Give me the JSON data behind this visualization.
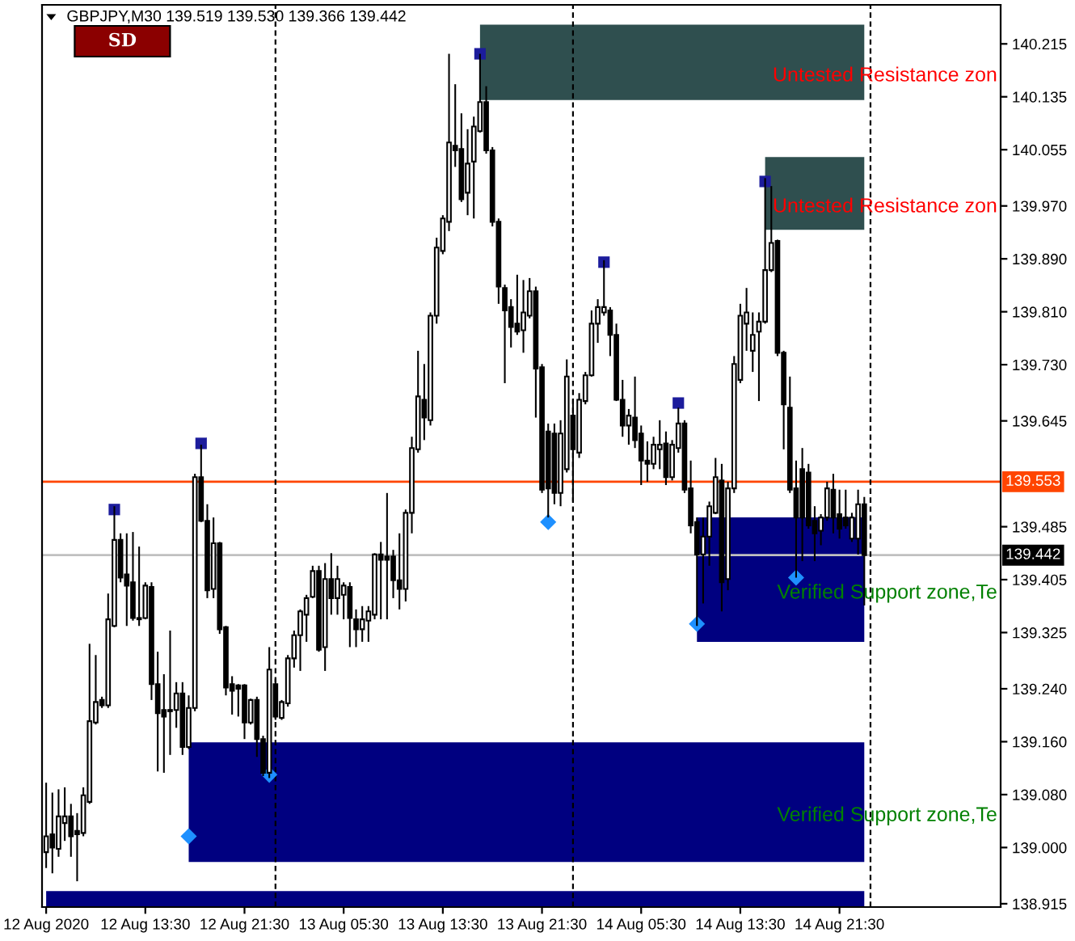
{
  "chart_data": {
    "type": "candlestick",
    "title": "GBPJPY,M30 139.519 139.530 139.366 139.442",
    "x": [
      "2020-08-12T05:30",
      "2020-08-12T06:00",
      "2020-08-12T06:30",
      "2020-08-12T07:00",
      "2020-08-12T07:30",
      "2020-08-12T08:00",
      "2020-08-12T08:30",
      "2020-08-12T09:00",
      "2020-08-12T09:30",
      "2020-08-12T10:00",
      "2020-08-12T10:30",
      "2020-08-12T11:00",
      "2020-08-12T11:30",
      "2020-08-12T12:00",
      "2020-08-12T12:30",
      "2020-08-12T13:00",
      "2020-08-12T13:30",
      "2020-08-12T14:00",
      "2020-08-12T14:30",
      "2020-08-12T15:00",
      "2020-08-12T15:30",
      "2020-08-12T16:00",
      "2020-08-12T16:30",
      "2020-08-12T17:00",
      "2020-08-12T17:30",
      "2020-08-12T18:00",
      "2020-08-12T18:30",
      "2020-08-12T19:00",
      "2020-08-12T19:30",
      "2020-08-12T20:00",
      "2020-08-12T20:30",
      "2020-08-12T21:00",
      "2020-08-12T21:30",
      "2020-08-12T22:00",
      "2020-08-12T22:30",
      "2020-08-12T23:00",
      "2020-08-12T23:30",
      "2020-08-13T00:00",
      "2020-08-13T00:30",
      "2020-08-13T01:00",
      "2020-08-13T01:30",
      "2020-08-13T02:00",
      "2020-08-13T02:30",
      "2020-08-13T03:00",
      "2020-08-13T03:30",
      "2020-08-13T04:00",
      "2020-08-13T04:30",
      "2020-08-13T05:00",
      "2020-08-13T05:30",
      "2020-08-13T06:00",
      "2020-08-13T06:30",
      "2020-08-13T07:00",
      "2020-08-13T07:30",
      "2020-08-13T08:00",
      "2020-08-13T08:30",
      "2020-08-13T09:00",
      "2020-08-13T09:30",
      "2020-08-13T10:00",
      "2020-08-13T10:30",
      "2020-08-13T11:00",
      "2020-08-13T11:30",
      "2020-08-13T12:00",
      "2020-08-13T12:30",
      "2020-08-13T13:00",
      "2020-08-13T13:30",
      "2020-08-13T14:00",
      "2020-08-13T14:30",
      "2020-08-13T15:00",
      "2020-08-13T15:30",
      "2020-08-13T16:00",
      "2020-08-13T16:30",
      "2020-08-13T17:00",
      "2020-08-13T17:30",
      "2020-08-13T18:00",
      "2020-08-13T18:30",
      "2020-08-13T19:00",
      "2020-08-13T19:30",
      "2020-08-13T20:00",
      "2020-08-13T20:30",
      "2020-08-13T21:00",
      "2020-08-13T21:30",
      "2020-08-13T22:00",
      "2020-08-13T22:30",
      "2020-08-13T23:00",
      "2020-08-13T23:30",
      "2020-08-14T00:00",
      "2020-08-14T00:30",
      "2020-08-14T01:00",
      "2020-08-14T01:30",
      "2020-08-14T02:00",
      "2020-08-14T02:30",
      "2020-08-14T03:00",
      "2020-08-14T03:30",
      "2020-08-14T04:00",
      "2020-08-14T04:30",
      "2020-08-14T05:00",
      "2020-08-14T05:30",
      "2020-08-14T06:00",
      "2020-08-14T06:30",
      "2020-08-14T07:00",
      "2020-08-14T07:30",
      "2020-08-14T08:00",
      "2020-08-14T08:30",
      "2020-08-14T09:00",
      "2020-08-14T09:30",
      "2020-08-14T10:00",
      "2020-08-14T10:30",
      "2020-08-14T11:00",
      "2020-08-14T11:30",
      "2020-08-14T12:00",
      "2020-08-14T12:30",
      "2020-08-14T13:00",
      "2020-08-14T13:30",
      "2020-08-14T14:00",
      "2020-08-14T14:30",
      "2020-08-14T15:00",
      "2020-08-14T15:30",
      "2020-08-14T16:00",
      "2020-08-14T16:30",
      "2020-08-14T17:00",
      "2020-08-14T17:30",
      "2020-08-14T18:00",
      "2020-08-14T18:30",
      "2020-08-14T19:00",
      "2020-08-14T19:30",
      "2020-08-14T20:00",
      "2020-08-14T20:30",
      "2020-08-14T21:00",
      "2020-08-14T21:30",
      "2020-08-14T22:00",
      "2020-08-14T22:30",
      "2020-08-14T23:00",
      "2020-08-14T23:30"
    ],
    "ohlc": [
      [
        138.993,
        139.098,
        138.969,
        139.017
      ],
      [
        139.02,
        139.083,
        138.961,
        139.0
      ],
      [
        138.998,
        139.088,
        138.986,
        139.047
      ],
      [
        139.037,
        139.091,
        139.01,
        139.047
      ],
      [
        139.047,
        139.066,
        138.986,
        139.017
      ],
      [
        139.025,
        139.052,
        138.949,
        139.02
      ],
      [
        139.022,
        139.091,
        139.017,
        139.079
      ],
      [
        139.069,
        139.308,
        139.066,
        139.191
      ],
      [
        139.189,
        139.291,
        139.186,
        139.22
      ],
      [
        139.223,
        139.228,
        139.211,
        139.215
      ],
      [
        139.215,
        139.384,
        139.211,
        139.345
      ],
      [
        139.335,
        139.516,
        139.333,
        139.465
      ],
      [
        139.465,
        139.475,
        139.401,
        139.408
      ],
      [
        139.413,
        139.475,
        139.335,
        139.396
      ],
      [
        139.401,
        139.477,
        139.343,
        139.347
      ],
      [
        139.347,
        139.455,
        139.335,
        139.345
      ],
      [
        139.347,
        139.401,
        139.345,
        139.396
      ],
      [
        139.394,
        139.401,
        139.223,
        139.247
      ],
      [
        139.247,
        139.296,
        139.115,
        139.203
      ],
      [
        139.208,
        139.262,
        139.113,
        139.198
      ],
      [
        139.206,
        139.328,
        139.14,
        139.208
      ],
      [
        139.208,
        139.25,
        139.181,
        139.233
      ],
      [
        139.233,
        139.25,
        139.14,
        139.152
      ],
      [
        139.152,
        139.23,
        139.149,
        139.211
      ],
      [
        139.211,
        139.565,
        139.206,
        139.56
      ],
      [
        139.56,
        139.609,
        139.492,
        139.494
      ],
      [
        139.494,
        139.519,
        139.377,
        139.389
      ],
      [
        139.391,
        139.499,
        139.377,
        139.46
      ],
      [
        139.46,
        139.462,
        139.323,
        139.33
      ],
      [
        139.333,
        139.335,
        139.23,
        139.242
      ],
      [
        139.247,
        139.259,
        139.201,
        139.237
      ],
      [
        139.245,
        139.247,
        139.198,
        139.24
      ],
      [
        139.245,
        139.247,
        139.164,
        139.189
      ],
      [
        139.189,
        139.225,
        139.186,
        139.223
      ],
      [
        139.223,
        139.228,
        139.137,
        139.164
      ],
      [
        139.164,
        139.169,
        139.108,
        139.113
      ],
      [
        139.113,
        139.303,
        139.105,
        139.269
      ],
      [
        139.247,
        139.255,
        139.193,
        139.198
      ],
      [
        139.196,
        139.223,
        139.193,
        139.22
      ],
      [
        139.218,
        139.291,
        139.213,
        139.286
      ],
      [
        139.286,
        139.328,
        139.272,
        139.321
      ],
      [
        139.321,
        139.36,
        139.267,
        139.357
      ],
      [
        139.352,
        139.382,
        139.311,
        139.377
      ],
      [
        139.379,
        139.426,
        139.377,
        139.418
      ],
      [
        139.418,
        139.426,
        139.296,
        139.299
      ],
      [
        139.303,
        139.43,
        139.267,
        139.406
      ],
      [
        139.406,
        139.445,
        139.352,
        139.377
      ],
      [
        139.377,
        139.426,
        139.352,
        139.406
      ],
      [
        139.382,
        139.401,
        139.345,
        139.396
      ],
      [
        139.394,
        139.401,
        139.303,
        139.347
      ],
      [
        139.345,
        139.36,
        139.303,
        139.33
      ],
      [
        139.33,
        139.365,
        139.311,
        139.345
      ],
      [
        139.343,
        139.365,
        139.311,
        139.357
      ],
      [
        139.352,
        139.445,
        139.345,
        139.443
      ],
      [
        139.443,
        139.462,
        139.345,
        139.435
      ],
      [
        139.44,
        139.536,
        139.345,
        139.435
      ],
      [
        139.44,
        139.45,
        139.377,
        139.404
      ],
      [
        139.404,
        139.475,
        139.36,
        139.391
      ],
      [
        139.391,
        139.511,
        139.372,
        139.506
      ],
      [
        139.506,
        139.621,
        139.475,
        139.604
      ],
      [
        139.602,
        139.751,
        139.597,
        139.682
      ],
      [
        139.677,
        139.731,
        139.616,
        139.65
      ],
      [
        139.646,
        139.809,
        139.638,
        139.804
      ],
      [
        139.804,
        139.922,
        139.792,
        139.907
      ],
      [
        139.902,
        139.956,
        139.897,
        139.951
      ],
      [
        139.946,
        140.2,
        139.932,
        140.066
      ],
      [
        140.061,
        140.154,
        140.029,
        140.054
      ],
      [
        140.056,
        140.11,
        139.976,
        139.98
      ],
      [
        139.99,
        140.086,
        139.956,
        140.034
      ],
      [
        140.037,
        140.105,
        139.951,
        140.09
      ],
      [
        140.083,
        140.2,
        140.081,
        140.127
      ],
      [
        140.127,
        140.151,
        140.049,
        140.054
      ],
      [
        140.054,
        140.059,
        139.939,
        139.946
      ],
      [
        139.946,
        139.951,
        139.822,
        139.848
      ],
      [
        139.846,
        139.851,
        139.702,
        139.812
      ],
      [
        139.817,
        139.829,
        139.756,
        139.787
      ],
      [
        139.792,
        139.866,
        139.775,
        139.78
      ],
      [
        139.782,
        139.858,
        139.748,
        139.809
      ],
      [
        139.804,
        139.861,
        139.8,
        139.841
      ],
      [
        139.841,
        139.848,
        139.65,
        139.724
      ],
      [
        139.726,
        139.731,
        139.536,
        139.541
      ],
      [
        139.629,
        139.641,
        139.499,
        139.543
      ],
      [
        139.626,
        139.641,
        139.519,
        139.536
      ],
      [
        139.536,
        139.646,
        139.516,
        139.626
      ],
      [
        139.572,
        139.738,
        139.567,
        139.712
      ],
      [
        139.653,
        139.677,
        139.523,
        139.602
      ],
      [
        139.597,
        139.687,
        139.589,
        139.677
      ],
      [
        139.675,
        139.719,
        139.67,
        139.714
      ],
      [
        139.714,
        139.812,
        139.712,
        139.792
      ],
      [
        139.792,
        139.829,
        139.763,
        139.817
      ],
      [
        139.809,
        139.888,
        139.804,
        139.817
      ],
      [
        139.812,
        139.817,
        139.743,
        139.775
      ],
      [
        139.775,
        139.792,
        139.675,
        139.677
      ],
      [
        139.677,
        139.707,
        139.621,
        139.638
      ],
      [
        139.638,
        139.663,
        139.609,
        139.653
      ],
      [
        139.65,
        139.712,
        139.604,
        139.616
      ],
      [
        139.626,
        139.638,
        139.548,
        139.585
      ],
      [
        139.585,
        139.614,
        139.553,
        139.58
      ],
      [
        139.58,
        139.621,
        139.572,
        139.609
      ],
      [
        139.602,
        139.646,
        139.572,
        139.609
      ],
      [
        139.611,
        139.629,
        139.548,
        139.56
      ],
      [
        139.56,
        139.616,
        139.555,
        139.609
      ],
      [
        139.604,
        139.665,
        139.597,
        139.641
      ],
      [
        139.641,
        139.646,
        139.536,
        139.541
      ],
      [
        139.543,
        139.585,
        139.475,
        139.487
      ],
      [
        139.492,
        139.499,
        139.335,
        139.443
      ],
      [
        139.443,
        139.499,
        139.369,
        139.47
      ],
      [
        139.47,
        139.523,
        139.426,
        139.516
      ],
      [
        139.506,
        139.589,
        139.504,
        139.56
      ],
      [
        139.555,
        139.58,
        139.357,
        139.401
      ],
      [
        139.406,
        139.553,
        139.389,
        139.543
      ],
      [
        139.543,
        139.743,
        139.536,
        139.731
      ],
      [
        139.707,
        139.822,
        139.702,
        139.804
      ],
      [
        139.792,
        139.846,
        139.751,
        139.809
      ],
      [
        139.751,
        139.809,
        139.719,
        139.775
      ],
      [
        139.78,
        139.809,
        139.675,
        139.795
      ],
      [
        139.795,
        140.012,
        139.792,
        139.873
      ],
      [
        139.873,
        140.0,
        139.87,
        139.914
      ],
      [
        139.917,
        139.919,
        139.743,
        139.748
      ],
      [
        139.748,
        139.751,
        139.602,
        139.67
      ],
      [
        139.665,
        139.712,
        139.536,
        139.541
      ],
      [
        139.543,
        139.585,
        139.408,
        139.499
      ],
      [
        139.572,
        139.604,
        139.433,
        139.499
      ],
      [
        139.567,
        139.58,
        139.482,
        139.487
      ],
      [
        139.494,
        139.516,
        139.433,
        139.475
      ],
      [
        139.479,
        139.504,
        139.457,
        139.499
      ],
      [
        139.499,
        139.553,
        139.494,
        139.543
      ],
      [
        139.541,
        139.565,
        139.475,
        139.499
      ],
      [
        139.504,
        139.541,
        139.467,
        139.482
      ],
      [
        139.499,
        139.541,
        139.482,
        139.487
      ],
      [
        139.467,
        139.506,
        139.462,
        139.499
      ],
      [
        139.467,
        139.541,
        139.443,
        139.519
      ],
      [
        139.519,
        139.53,
        139.366,
        139.442
      ]
    ],
    "series": [
      {
        "type": "line",
        "x": [
          "2020-08-13T16:30",
          "2020-08-14T23:30"
        ],
        "values": [
          null,
          null
        ],
        "lower": [
          140.13,
          140.13
        ],
        "upper": [
          140.244,
          140.244
        ],
        "color": "#2f4f4f"
      },
      {
        "type": "line",
        "x": [
          "2020-08-14T15:30",
          "2020-08-14T23:30"
        ],
        "values": [
          null,
          null
        ],
        "lower": [
          139.934,
          139.934
        ],
        "upper": [
          140.044,
          140.044
        ],
        "color": "#2f4f4f"
      },
      {
        "type": "line",
        "x": [
          "2020-08-14T10:00",
          "2020-08-14T23:30"
        ],
        "values": [
          null,
          null
        ],
        "lower": [
          139.311,
          139.311
        ],
        "upper": [
          139.499,
          139.499
        ],
        "color": "#000080"
      },
      {
        "type": "line",
        "x": [
          "2020-08-12T17:00",
          "2020-08-14T23:30"
        ],
        "values": [
          null,
          null
        ],
        "lower": [
          138.978,
          138.978
        ],
        "upper": [
          139.159,
          139.159
        ],
        "color": "#000080"
      },
      {
        "type": "line",
        "x": [
          "2020-08-12T05:30",
          "2020-08-14T23:30"
        ],
        "values": [
          null,
          null
        ],
        "lower": [
          138.91,
          138.91
        ],
        "upper": [
          138.934,
          138.934
        ],
        "color": "#000080"
      },
      {
        "type": "scatter",
        "marker": "square",
        "color": "#1c1c9c",
        "x": [
          "2020-08-12T11:00",
          "2020-08-12T18:00",
          "2020-08-13T16:30",
          "2020-08-14T02:30",
          "2020-08-14T08:30",
          "2020-08-14T15:30"
        ],
        "values": [
          139.511,
          139.611,
          140.2,
          139.885,
          139.672,
          140.007
        ]
      },
      {
        "type": "scatter",
        "marker": "diamond",
        "color": "#1e90ff",
        "x": [
          "2020-08-12T17:00",
          "2020-08-12T23:30",
          "2020-08-13T22:00",
          "2020-08-14T10:00",
          "2020-08-14T18:00"
        ],
        "values": [
          139.017,
          139.11,
          139.492,
          139.338,
          139.408
        ]
      }
    ],
    "ref_lines": [
      {
        "axis": "y",
        "value": 139.553,
        "label": "139.553",
        "color": "#ff4500"
      },
      {
        "axis": "y",
        "value": 139.442,
        "label": "139.442",
        "color": "#c0c0c0"
      },
      {
        "axis": "x",
        "value": "2020-08-13T00:00",
        "color": "#000000",
        "line_style": "dashed"
      },
      {
        "axis": "x",
        "value": "2020-08-14T00:00",
        "color": "#000000",
        "line_style": "dashed"
      },
      {
        "axis": "x",
        "value": "2020-08-15T00:00",
        "color": "#000000",
        "line_style": "dashed"
      }
    ],
    "annotations": [
      "SD",
      "Untested Resistance zon",
      "Untested Resistance zon",
      "Verified Support zone,Te",
      "Verified Support zone,Te"
    ],
    "xlim": [
      "2020-08-12T05:10",
      "2020-08-15T10:30"
    ],
    "xticks": [
      {
        "value": "2020-08-12T05:30",
        "label": "12 Aug 2020"
      },
      {
        "value": "2020-08-12T13:30",
        "label": "12 Aug 13:30"
      },
      {
        "value": "2020-08-12T21:30",
        "label": "12 Aug 21:30"
      },
      {
        "value": "2020-08-13T05:30",
        "label": "13 Aug 05:30"
      },
      {
        "value": "2020-08-13T13:30",
        "label": "13 Aug 13:30"
      },
      {
        "value": "2020-08-13T21:30",
        "label": "13 Aug 21:30"
      },
      {
        "value": "2020-08-14T05:30",
        "label": "14 Aug 05:30"
      },
      {
        "value": "2020-08-14T13:30",
        "label": "14 Aug 13:30"
      },
      {
        "value": "2020-08-14T21:30",
        "label": "14 Aug 21:30"
      }
    ],
    "ylim": [
      138.91,
      140.274
    ],
    "yticks": [
      140.215,
      140.135,
      140.055,
      {
        "value": 139.97,
        "label": "139.970"
      },
      {
        "value": 139.89,
        "label": "139.890"
      },
      {
        "value": 139.81,
        "label": "139.810"
      },
      {
        "value": 139.73,
        "label": "139.730"
      },
      139.645,
      139.485,
      139.405,
      139.325,
      {
        "value": 139.24,
        "label": "139.240"
      },
      {
        "value": 139.16,
        "label": "139.160"
      },
      {
        "value": 139.08,
        "label": "139.080"
      },
      {
        "value": 139,
        "label": "139.000"
      },
      138.915
    ]
  }
}
